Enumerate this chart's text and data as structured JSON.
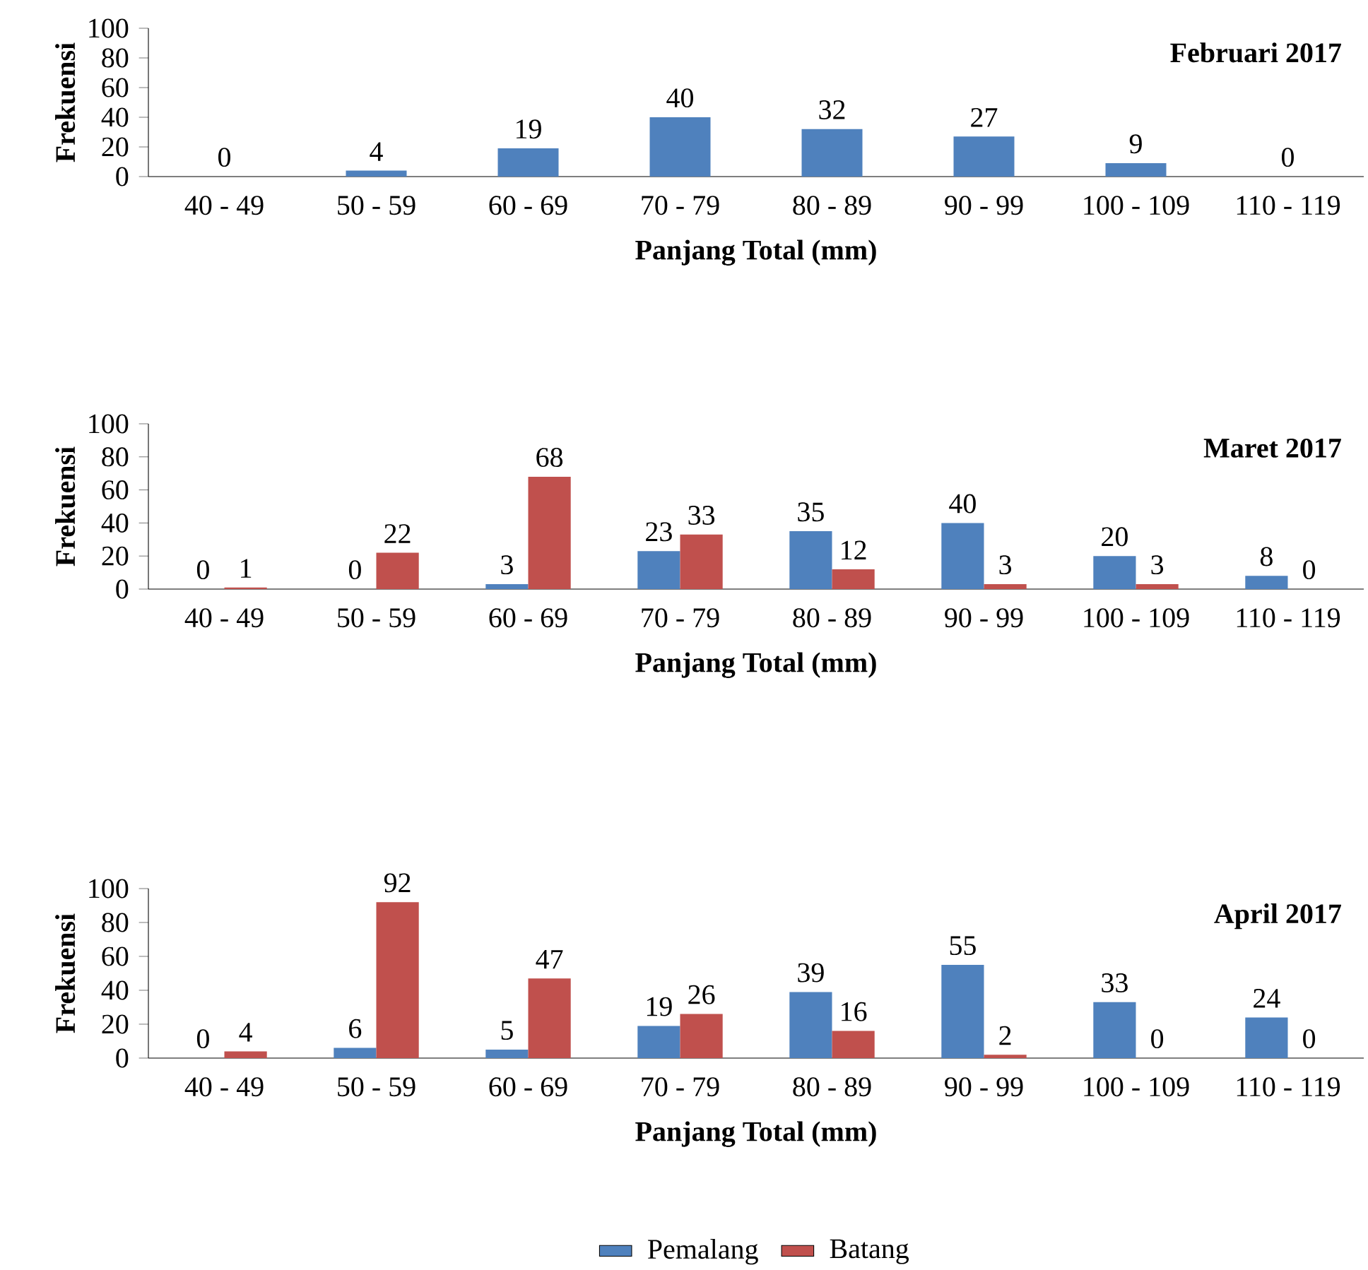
{
  "chart_data": [
    {
      "type": "bar",
      "title": "Februari 2017",
      "xlabel": "Panjang Total (mm)",
      "ylabel": "Frekuensi",
      "categories": [
        "40 - 49",
        "50 - 59",
        "60 - 69",
        "70 - 79",
        "80 - 89",
        "90 - 99",
        "100 - 109",
        "110 - 119"
      ],
      "values": [
        0,
        4,
        19,
        40,
        32,
        27,
        9,
        0
      ],
      "color": "#4f81bd",
      "ylim": [
        0,
        100
      ],
      "yticks": [
        0,
        20,
        40,
        60,
        80,
        100
      ],
      "data_labels": true
    },
    {
      "type": "bar",
      "title": "Maret 2017",
      "xlabel": "Panjang Total (mm)",
      "ylabel": "Frekuensi",
      "categories": [
        "40 - 49",
        "50 - 59",
        "60 - 69",
        "70 - 79",
        "80 - 89",
        "90 - 99",
        "100 - 109",
        "110 - 119"
      ],
      "series": [
        {
          "color": "#4f81bd",
          "values": [
            0,
            0,
            3,
            23,
            35,
            40,
            20,
            8
          ]
        },
        {
          "color": "#c0504d",
          "values": [
            1,
            22,
            68,
            33,
            12,
            3,
            3,
            0
          ]
        }
      ],
      "ylim": [
        0,
        100
      ],
      "yticks": [
        0,
        20,
        40,
        60,
        80,
        100
      ],
      "data_labels": true
    },
    {
      "type": "bar",
      "title": "April 2017",
      "xlabel": "Panjang Total (mm)",
      "ylabel": "Frekuensi",
      "categories": [
        "40 - 49",
        "50 - 59",
        "60 - 69",
        "70 - 79",
        "80 - 89",
        "90 - 99",
        "100 - 109",
        "110 - 119"
      ],
      "series": [
        {
          "name": "Pemalang",
          "color": "#4f81bd",
          "values": [
            0,
            6,
            5,
            19,
            39,
            55,
            33,
            24
          ]
        },
        {
          "name": "Batang",
          "color": "#c0504d",
          "values": [
            4,
            92,
            47,
            26,
            16,
            2,
            0,
            0
          ]
        }
      ],
      "ylim": [
        0,
        100
      ],
      "yticks": [
        0,
        20,
        40,
        60,
        80,
        100
      ],
      "data_labels": true,
      "legend": "bottom"
    }
  ]
}
